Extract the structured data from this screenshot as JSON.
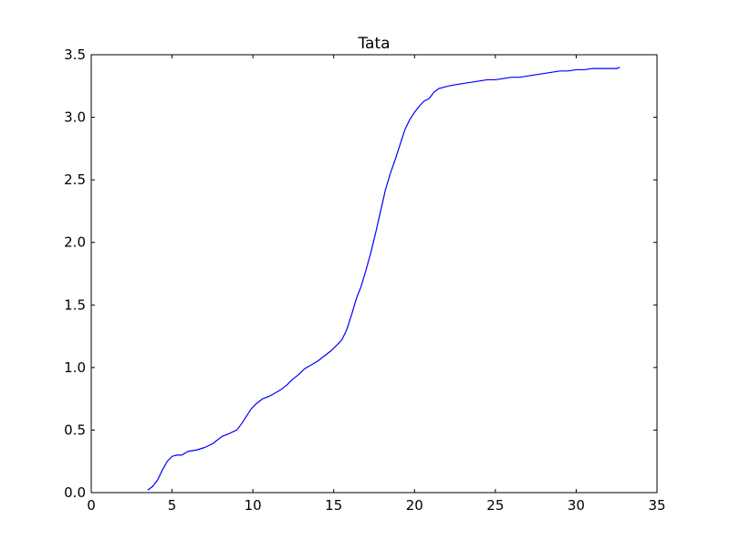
{
  "chart_data": {
    "type": "line",
    "title": "Tata",
    "xlabel": "",
    "ylabel": "",
    "xlim": [
      0,
      35
    ],
    "ylim": [
      0,
      3.5
    ],
    "xticks": [
      0,
      5,
      10,
      15,
      20,
      25,
      30,
      35
    ],
    "xtick_labels": [
      "0",
      "5",
      "10",
      "15",
      "20",
      "25",
      "30",
      "35"
    ],
    "yticks": [
      0,
      0.5,
      1.0,
      1.5,
      2.0,
      2.5,
      3.0,
      3.5
    ],
    "ytick_labels": [
      "0.0",
      "0.5",
      "1.0",
      "1.5",
      "2.0",
      "2.5",
      "3.0",
      "3.5"
    ],
    "grid": false,
    "legend": "none",
    "series": [
      {
        "color": "#0000ff",
        "x": [
          3.5,
          3.8,
          4.1,
          4.4,
          4.7,
          5.0,
          5.3,
          5.6,
          6.0,
          6.5,
          7.0,
          7.5,
          7.8,
          8.1,
          8.5,
          9.0,
          9.3,
          9.6,
          9.9,
          10.2,
          10.6,
          11.0,
          11.3,
          11.7,
          12.1,
          12.4,
          12.8,
          13.2,
          13.6,
          14.0,
          14.4,
          14.8,
          15.2,
          15.5,
          15.8,
          16.1,
          16.4,
          16.7,
          17.0,
          17.3,
          17.6,
          17.9,
          18.2,
          18.5,
          18.8,
          19.1,
          19.4,
          19.7,
          20.0,
          20.3,
          20.6,
          20.9,
          21.2,
          21.5,
          21.8,
          22.1,
          22.5,
          23.0,
          23.5,
          24.0,
          24.5,
          25.0,
          25.5,
          26.0,
          26.5,
          27.0,
          27.5,
          28.0,
          28.5,
          29.0,
          29.5,
          30.0,
          30.5,
          31.0,
          31.5,
          32.0,
          32.5,
          32.7
        ],
        "y": [
          0.02,
          0.05,
          0.1,
          0.18,
          0.25,
          0.29,
          0.3,
          0.3,
          0.33,
          0.34,
          0.36,
          0.39,
          0.42,
          0.45,
          0.47,
          0.5,
          0.55,
          0.61,
          0.67,
          0.71,
          0.75,
          0.77,
          0.79,
          0.82,
          0.86,
          0.9,
          0.94,
          0.99,
          1.02,
          1.05,
          1.09,
          1.13,
          1.18,
          1.22,
          1.3,
          1.42,
          1.55,
          1.65,
          1.78,
          1.92,
          2.08,
          2.25,
          2.42,
          2.55,
          2.66,
          2.78,
          2.9,
          2.98,
          3.04,
          3.09,
          3.13,
          3.15,
          3.2,
          3.23,
          3.24,
          3.25,
          3.26,
          3.27,
          3.28,
          3.29,
          3.3,
          3.3,
          3.31,
          3.32,
          3.32,
          3.33,
          3.34,
          3.35,
          3.36,
          3.37,
          3.37,
          3.38,
          3.38,
          3.39,
          3.39,
          3.39,
          3.39,
          3.4
        ]
      }
    ]
  }
}
